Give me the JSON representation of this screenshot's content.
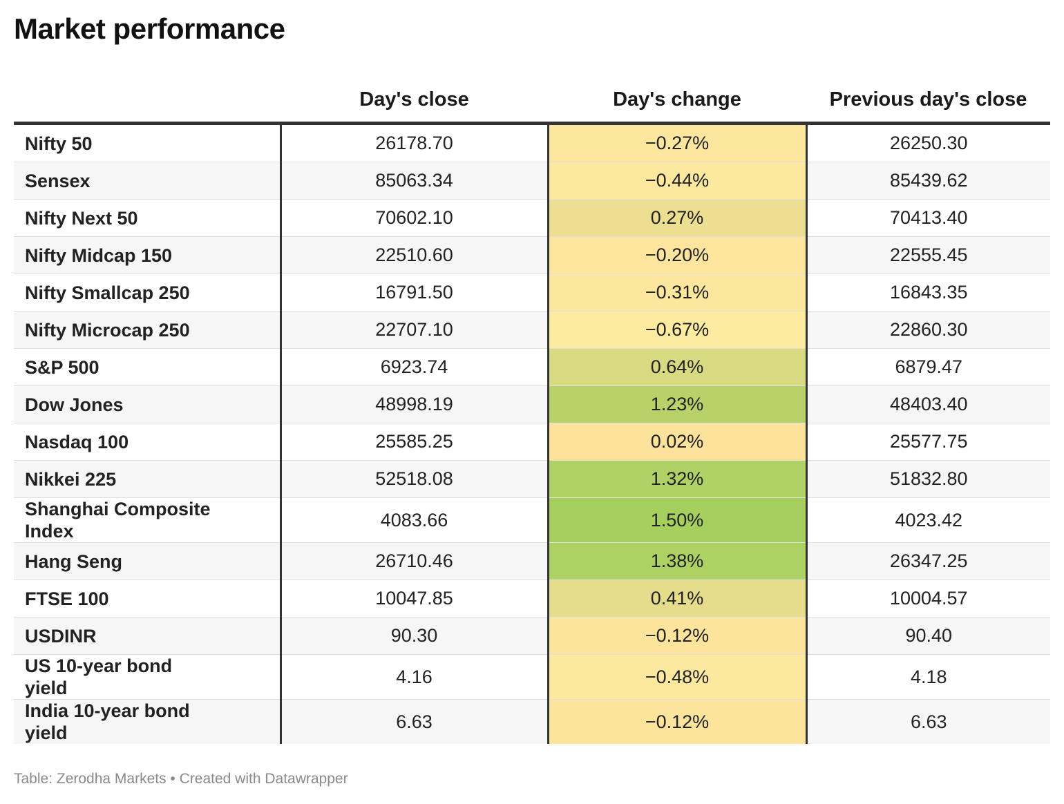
{
  "chart_data": {
    "type": "table",
    "title": "Market performance",
    "columns": [
      "",
      "Day's close",
      "Day's change",
      "Previous day's close"
    ],
    "rows": [
      {
        "name": "Nifty 50",
        "close": "26178.70",
        "change": "-0.27%",
        "change_value": -0.27,
        "prev": "26250.30"
      },
      {
        "name": "Sensex",
        "close": "85063.34",
        "change": "-0.44%",
        "change_value": -0.44,
        "prev": "85439.62"
      },
      {
        "name": "Nifty Next 50",
        "close": "70602.10",
        "change": "0.27%",
        "change_value": 0.27,
        "prev": "70413.40"
      },
      {
        "name": "Nifty Midcap 150",
        "close": "22510.60",
        "change": "-0.20%",
        "change_value": -0.2,
        "prev": "22555.45"
      },
      {
        "name": "Nifty Smallcap 250",
        "close": "16791.50",
        "change": "-0.31%",
        "change_value": -0.31,
        "prev": "16843.35"
      },
      {
        "name": "Nifty Microcap 250",
        "close": "22707.10",
        "change": "-0.67%",
        "change_value": -0.67,
        "prev": "22860.30"
      },
      {
        "name": "S&P 500",
        "close": "6923.74",
        "change": "0.64%",
        "change_value": 0.64,
        "prev": "6879.47"
      },
      {
        "name": "Dow Jones",
        "close": "48998.19",
        "change": "1.23%",
        "change_value": 1.23,
        "prev": "48403.40"
      },
      {
        "name": "Nasdaq 100",
        "close": "25585.25",
        "change": "0.02%",
        "change_value": 0.02,
        "prev": "25577.75"
      },
      {
        "name": "Nikkei 225",
        "close": "52518.08",
        "change": "1.32%",
        "change_value": 1.32,
        "prev": "51832.80"
      },
      {
        "name": "Shanghai Composite Index",
        "close": "4083.66",
        "change": "1.50%",
        "change_value": 1.5,
        "prev": "4023.42"
      },
      {
        "name": "Hang Seng",
        "close": "26710.46",
        "change": "1.38%",
        "change_value": 1.38,
        "prev": "26347.25"
      },
      {
        "name": "FTSE 100",
        "close": "10047.85",
        "change": "0.41%",
        "change_value": 0.41,
        "prev": "10004.57"
      },
      {
        "name": "USDINR",
        "close": "90.30",
        "change": "-0.12%",
        "change_value": -0.12,
        "prev": "90.40"
      },
      {
        "name": "US 10-year bond yield",
        "close": "4.16",
        "change": "-0.48%",
        "change_value": -0.48,
        "prev": "4.18"
      },
      {
        "name": "India 10-year bond yield",
        "close": "6.63",
        "change": "-0.12%",
        "change_value": -0.12,
        "prev": "6.63"
      }
    ],
    "heat_colors": {
      "low": "#fdeba0",
      "mid": "#fde29c",
      "high": "#a6cf5e"
    }
  },
  "footer": {
    "source": "Table: Zerodha Markets • Created with Datawrapper"
  }
}
